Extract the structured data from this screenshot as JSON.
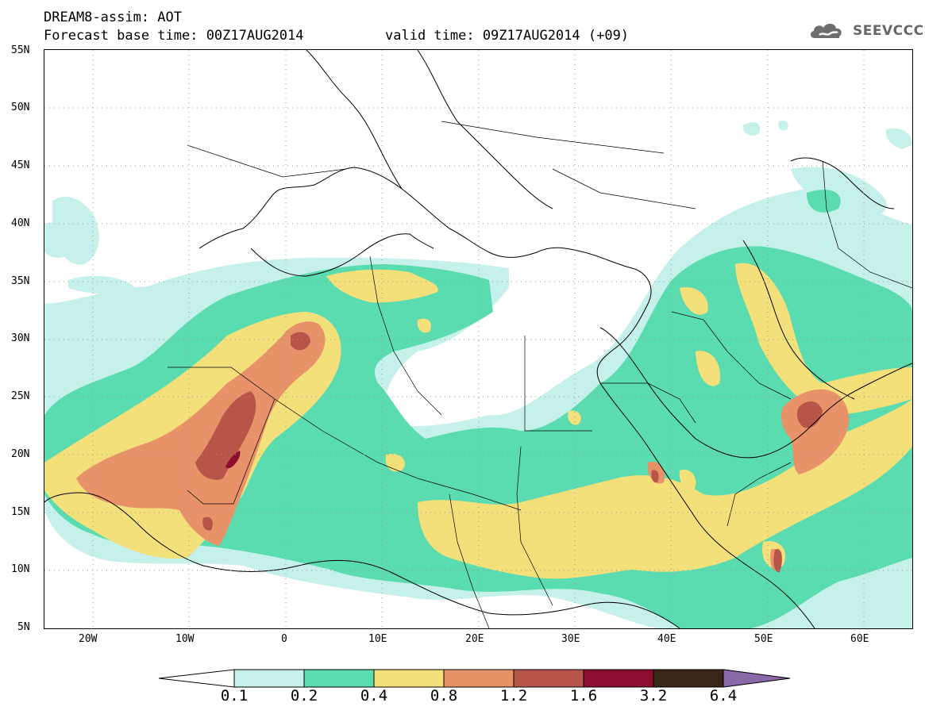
{
  "header": {
    "model_line": "DREAM8-assim: AOT",
    "base_time_line": "Forecast base time: 00Z17AUG2014",
    "valid_time_line": "valid time: 09Z17AUG2014 (+09)"
  },
  "logo": {
    "text": "SEEVCCC",
    "icon": "cloud-icon"
  },
  "map": {
    "variable": "AOT",
    "latitude_labels": [
      "55N",
      "50N",
      "45N",
      "40N",
      "35N",
      "30N",
      "25N",
      "20N",
      "15N",
      "10N",
      "5N"
    ],
    "longitude_labels": [
      "20W",
      "10W",
      "0",
      "10E",
      "20E",
      "30E",
      "40E",
      "50E",
      "60E"
    ],
    "colors": {
      "c01": "#c6f0ea",
      "c02": "#5bdcb0",
      "c04": "#f3e07a",
      "c08": "#e8926a",
      "c12": "#b65548",
      "c16": "#8b0e2e",
      "c32": "#3a2616",
      "c64": "#8b68a8"
    }
  },
  "colorbar": {
    "labels": [
      "0.1",
      "0.2",
      "0.4",
      "0.8",
      "1.2",
      "1.6",
      "3.2",
      "6.4"
    ]
  }
}
